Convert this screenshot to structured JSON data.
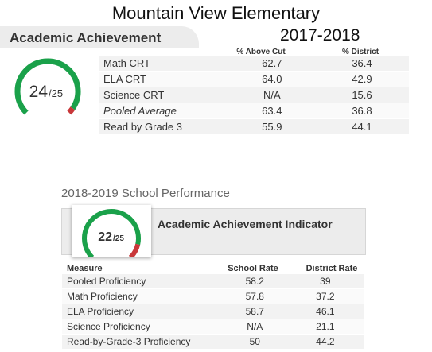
{
  "school_name": "Mountain View Elementary",
  "section_title": "Academic Achievement",
  "year": "2017-2018",
  "top_gauge": {
    "score": "24",
    "max": "/25",
    "fraction": 0.96,
    "arc_color": "#1aa14a",
    "low_color": "#c9383a"
  },
  "top_table": {
    "headers": [
      "% Above Cut",
      "% District"
    ],
    "rows": [
      {
        "label": "Math CRT",
        "above_cut": "62.7",
        "district": "36.4",
        "italic": false
      },
      {
        "label": "ELA CRT",
        "above_cut": "64.0",
        "district": "42.9",
        "italic": false
      },
      {
        "label": "Science CRT",
        "above_cut": "N/A",
        "district": "15.6",
        "italic": false
      },
      {
        "label": "Pooled Average",
        "above_cut": "63.4",
        "district": "36.8",
        "italic": true
      },
      {
        "label": "Read by Grade 3",
        "above_cut": "55.9",
        "district": "44.1",
        "italic": false
      }
    ]
  },
  "bottom_section": {
    "title": "2018-2019 School Performance",
    "indicator_title": "Academic Achievement Indicator",
    "gauge": {
      "score": "22",
      "max": "/25",
      "fraction": 0.88,
      "arc_color": "#1aa14a",
      "low_color": "#c9383a"
    },
    "headers": [
      "Measure",
      "School Rate",
      "District Rate"
    ],
    "rows": [
      {
        "measure": "Pooled Proficiency",
        "school": "58.2",
        "district": "39"
      },
      {
        "measure": "Math Proficiency",
        "school": "57.8",
        "district": "37.2"
      },
      {
        "measure": "ELA Proficiency",
        "school": "58.7",
        "district": "46.1"
      },
      {
        "measure": "Science Proficiency",
        "school": "N/A",
        "district": "21.1"
      },
      {
        "measure": "Read-by-Grade-3 Proficiency",
        "school": "50",
        "district": "44.2"
      }
    ]
  }
}
